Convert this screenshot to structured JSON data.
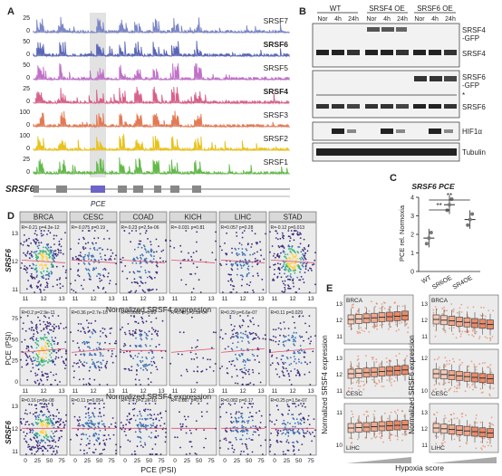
{
  "panels": {
    "a": "A",
    "b": "B",
    "c": "C",
    "d": "D",
    "e": "E"
  },
  "panel_a": {
    "tracks": [
      {
        "name": "SRSF7",
        "bold": false,
        "color": "#7b86c6",
        "scale_max": "25"
      },
      {
        "name": "SRSF6",
        "bold": true,
        "color": "#5a66b6",
        "scale_max": "50"
      },
      {
        "name": "SRSF5",
        "bold": false,
        "color": "#c070c8",
        "scale_max": "50"
      },
      {
        "name": "SRSF4",
        "bold": true,
        "color": "#d8608a",
        "scale_max": "25"
      },
      {
        "name": "SRSF3",
        "bold": false,
        "color": "#e27a55",
        "scale_max": "100"
      },
      {
        "name": "SRSF2",
        "bold": false,
        "color": "#e9c21b",
        "scale_max": "100"
      },
      {
        "name": "SRSF1",
        "bold": false,
        "color": "#63b94a",
        "scale_max": "25"
      }
    ],
    "scale_min": "0",
    "gene": "SRSF6",
    "exon_label": "PCE"
  },
  "panel_b": {
    "groups": [
      "WT",
      "SRSF4 OE",
      "SRSF6 OE"
    ],
    "lanes": [
      "Nor",
      "4h",
      "24h",
      "Nor",
      "4h",
      "24h",
      "Nor",
      "4h",
      "24h"
    ],
    "blots": [
      {
        "labels": [
          "SRSF4",
          "-GFP",
          "SRSF4"
        ]
      },
      {
        "labels": [
          "SRSF6",
          "-GFP",
          "*",
          "SRSF6"
        ]
      },
      {
        "labels": [
          "HIF1α"
        ]
      },
      {
        "labels": [
          "Tubulin"
        ]
      }
    ]
  },
  "panel_c": {
    "title": "SRSF6 PCE",
    "ylabel": "PCE rel. Normoxia",
    "yticks": [
      "0",
      "1",
      "2",
      "3",
      "4"
    ],
    "sig": [
      "**",
      "**"
    ]
  },
  "panel_d": {
    "cancers": [
      "BRCA",
      "CESC",
      "COAD",
      "KICH",
      "LIHC",
      "STAD"
    ],
    "row1_stats": [
      "R=-0.21 p=4.3e-12",
      "R=-0.075 p=0.19",
      "R=-0.23 p=2.5e-06",
      "R=-0.031 p=0.81",
      "R=0.057 p=0.28",
      "R=-0.12 p=0.013"
    ],
    "row2_stats": [
      "R=0.2 p=2.9e-11",
      "R=0.36 p=2.7e-10",
      "R=0.0068 p=0.89",
      "R=0.45 p=2.1e-04",
      "R=0.29 p=6.6e-07",
      "R=0.11 p=0.029"
    ],
    "row3_stats": [
      "R=0.16 p=8e-08",
      "R=0.11 p=0.054",
      "R=-0.4 p=2.2e-16",
      "R=-0.087 p=0.5",
      "R=0.082 p=0.17",
      "R=0.25 p=1.5e-07"
    ],
    "row1_ylabel": "SRSF6",
    "row2_ylabel": "PCE (PSI)",
    "row3_ylabel": "SRSF6",
    "row1_xlabel": "Normalized SRSF4 expression",
    "row2_xlabel": "Normalized SRSF4 expression",
    "row3_xlabel": "PCE (PSI)"
  },
  "panel_e": {
    "left_ylabel": "Normalized SRSF4 expression",
    "right_ylabel": "Normalized SRSF6 expression",
    "xlabel": "Hypoxia score",
    "tissues": [
      "BRCA",
      "CESC",
      "LIHC"
    ]
  },
  "chart_data": [
    {
      "type": "bar",
      "title": "SRSF6 PCE",
      "categories": [
        "WT",
        "SR6OE",
        "SR4OE"
      ],
      "values": [
        1.8,
        3.6,
        2.8
      ],
      "ylabel": "PCE rel. Normoxia",
      "ylim": [
        0,
        4
      ]
    }
  ]
}
